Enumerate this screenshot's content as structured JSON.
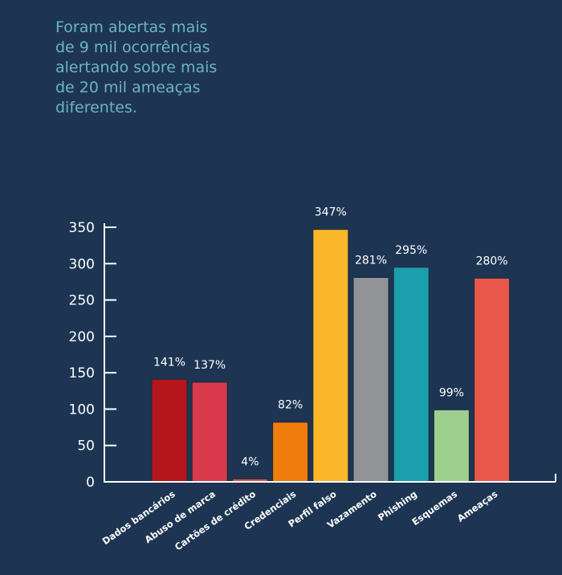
{
  "headline": [
    "Foram abertas mais",
    "de 9 mil ocorrências",
    "alertando sobre mais",
    "de 20 mil ameaças",
    "diferentes."
  ],
  "chart_data": {
    "type": "bar",
    "title": "",
    "xlabel": "",
    "ylabel": "",
    "ylim": [
      0,
      350
    ],
    "yticks": [
      0,
      50,
      100,
      150,
      200,
      250,
      300,
      350
    ],
    "grid": false,
    "categories": [
      "Dados bancários",
      "Abuso de marca",
      "Cartões de crédito",
      "Credenciais",
      "Perfil falso",
      "Vazamento",
      "Phishing",
      "Esquemas",
      "Ameaças"
    ],
    "values": [
      141,
      137,
      4,
      82,
      347,
      281,
      295,
      99,
      280
    ],
    "data_labels": [
      "141%",
      "137%",
      "4%",
      "82%",
      "347%",
      "281%",
      "295%",
      "99%",
      "280%"
    ],
    "colors": [
      "#b5161b",
      "#d83a4b",
      "#e0574c",
      "#f07c0b",
      "#fbb72a",
      "#929397",
      "#1b9fae",
      "#9dd08f",
      "#ea584b"
    ]
  }
}
